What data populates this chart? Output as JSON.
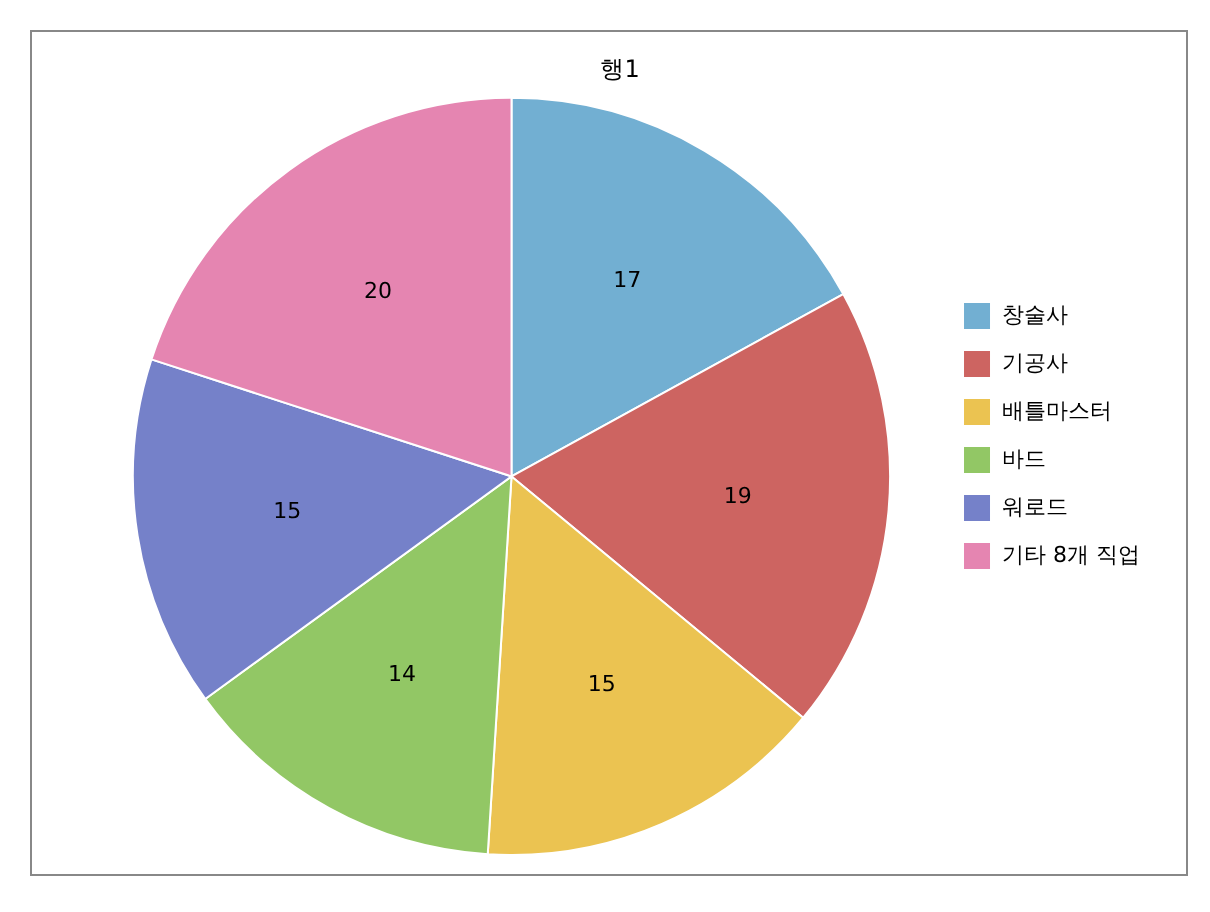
{
  "chart_data": {
    "type": "pie",
    "title": "행1",
    "categories": [
      "창술사",
      "기공사",
      "배틀마스터",
      "바드",
      "워로드",
      "기타 8개 직업"
    ],
    "values": [
      17,
      19,
      15,
      14,
      15,
      20
    ],
    "colors": [
      "#72afd2",
      "#cd6461",
      "#ebc351",
      "#92c765",
      "#7581c9",
      "#e585b1"
    ],
    "data_labels": true,
    "legend": "right"
  }
}
